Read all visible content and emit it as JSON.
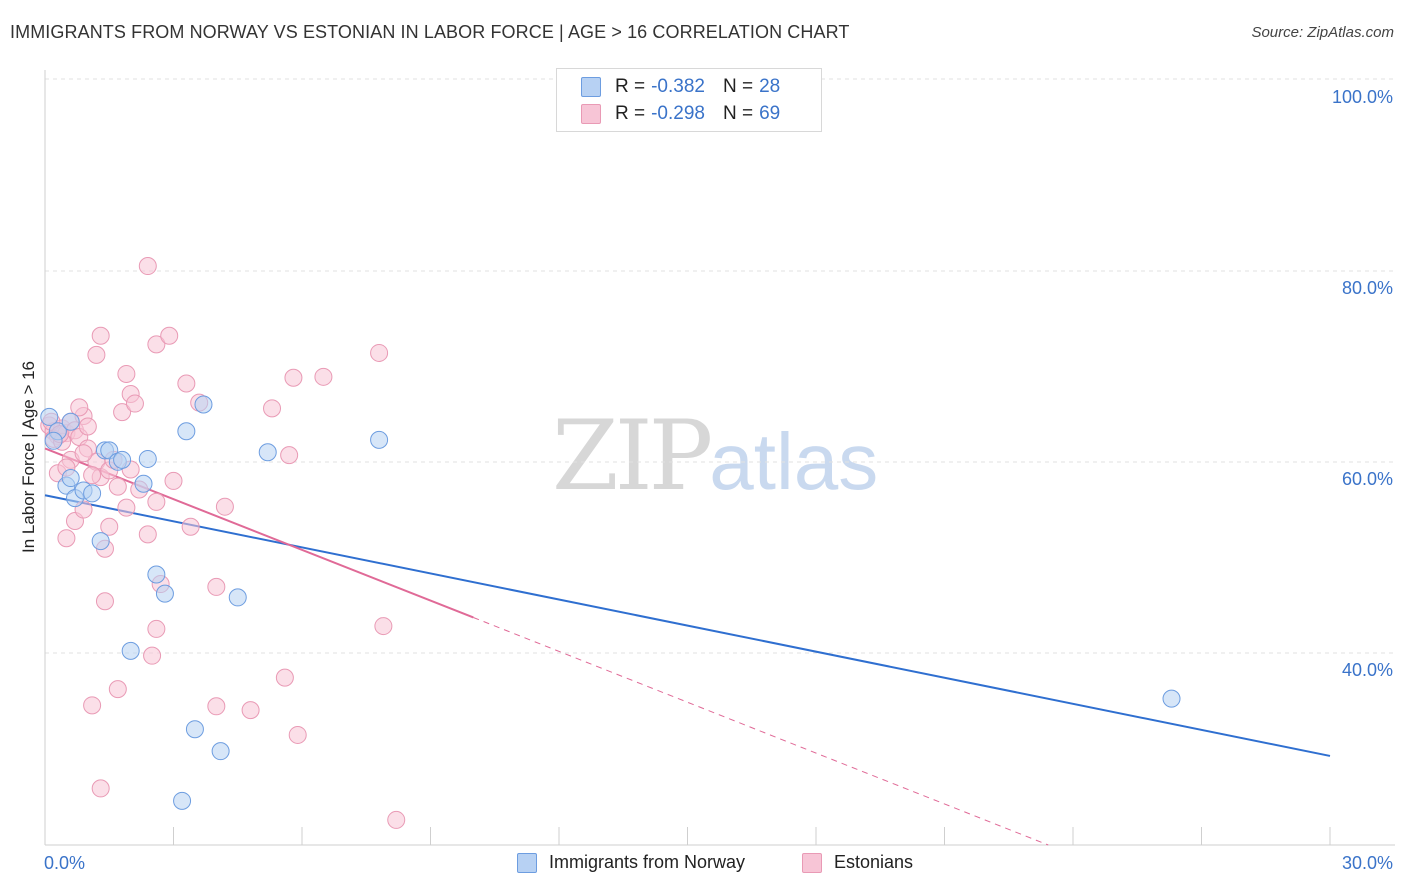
{
  "header": {
    "title": "IMMIGRANTS FROM NORWAY VS ESTONIAN IN LABOR FORCE | AGE > 16 CORRELATION CHART",
    "source": "Source: ZipAtlas.com"
  },
  "legend_top": {
    "rows": [
      {
        "r_label": "R =",
        "r_value": "-0.382",
        "n_label": "N =",
        "n_value": "28"
      },
      {
        "r_label": "R =",
        "r_value": "-0.298",
        "n_label": "N =",
        "n_value": "69"
      }
    ]
  },
  "legend_bottom": {
    "items": [
      {
        "label": "Immigrants from Norway"
      },
      {
        "label": "Estonians"
      }
    ]
  },
  "watermark": {
    "zip": "ZIP",
    "atlas": "atlas"
  },
  "colors": {
    "blue_fill": "#b7d1f3",
    "blue_stroke": "#6d9de0",
    "blue_line": "#2f6fd0",
    "pink_fill": "#f7c5d6",
    "pink_stroke": "#e99ab5",
    "pink_line": "#e06a97",
    "tick_text": "#3a73c9",
    "grid": "#e2e2e2"
  },
  "chart_data": {
    "type": "scatter",
    "title": "IMMIGRANTS FROM NORWAY VS ESTONIAN IN LABOR FORCE | AGE > 16 CORRELATION CHART",
    "xlabel": "",
    "ylabel": "In Labor Force | Age > 16",
    "xlim": [
      0,
      30
    ],
    "ylim": [
      20,
      103
    ],
    "y_ticks": [
      {
        "value": 100,
        "label": "100.0%"
      },
      {
        "value": 80,
        "label": "80.0%"
      },
      {
        "value": 60,
        "label": "60.0%"
      },
      {
        "value": 40,
        "label": "40.0%"
      }
    ],
    "x_ticks": [
      {
        "value": 0,
        "label": "0.0%"
      },
      {
        "value": 30,
        "label": "30.0%"
      }
    ],
    "x_minor_ticks": [
      0,
      3,
      6,
      9,
      12,
      15,
      18,
      21,
      24,
      27,
      30
    ],
    "series": [
      {
        "name": "Immigrants from Norway",
        "r": -0.382,
        "n": 28,
        "trend": {
          "x0": 0,
          "y0": 58.3,
          "x1": 30,
          "y1": 31.0
        },
        "points": [
          [
            0.1,
            66.5
          ],
          [
            0.3,
            65.0
          ],
          [
            0.6,
            66.0
          ],
          [
            0.5,
            59.3
          ],
          [
            0.6,
            60.1
          ],
          [
            0.7,
            58.0
          ],
          [
            0.9,
            58.8
          ],
          [
            1.1,
            58.5
          ],
          [
            1.3,
            53.5
          ],
          [
            1.4,
            63.0
          ],
          [
            1.5,
            63.0
          ],
          [
            1.7,
            61.8
          ],
          [
            1.8,
            62.0
          ],
          [
            2.3,
            59.5
          ],
          [
            2.4,
            62.1
          ],
          [
            2.6,
            50.0
          ],
          [
            2.8,
            48.0
          ],
          [
            3.3,
            65.0
          ],
          [
            3.7,
            67.8
          ],
          [
            5.2,
            62.8
          ],
          [
            7.8,
            64.1
          ],
          [
            2.0,
            42.0
          ],
          [
            4.5,
            47.6
          ],
          [
            3.5,
            33.8
          ],
          [
            4.1,
            31.5
          ],
          [
            3.2,
            26.3
          ],
          [
            26.3,
            37.0
          ],
          [
            0.2,
            64.0
          ]
        ]
      },
      {
        "name": "Estonians",
        "r": -0.298,
        "n": 69,
        "trend": {
          "x0": 0,
          "y0": 63.2,
          "x1": 10.0,
          "y1": 45.5
        },
        "trend_dashed": {
          "x0": 10.0,
          "y0": 45.5,
          "x1": 30,
          "y1": 10.0
        },
        "points": [
          [
            0.1,
            65.6
          ],
          [
            0.2,
            65.0
          ],
          [
            0.3,
            64.5
          ],
          [
            0.4,
            65.3
          ],
          [
            0.5,
            64.8
          ],
          [
            0.6,
            66.0
          ],
          [
            0.7,
            65.1
          ],
          [
            0.8,
            64.4
          ],
          [
            0.9,
            66.6
          ],
          [
            1.0,
            65.5
          ],
          [
            0.8,
            67.5
          ],
          [
            1.0,
            63.2
          ],
          [
            1.2,
            61.8
          ],
          [
            1.3,
            60.2
          ],
          [
            0.3,
            60.6
          ],
          [
            0.5,
            53.8
          ],
          [
            0.7,
            55.6
          ],
          [
            0.9,
            56.8
          ],
          [
            1.2,
            73.0
          ],
          [
            1.3,
            75.0
          ],
          [
            1.8,
            67.0
          ],
          [
            1.9,
            71.0
          ],
          [
            2.0,
            68.9
          ],
          [
            2.1,
            67.9
          ],
          [
            1.5,
            60.9
          ],
          [
            1.4,
            52.7
          ],
          [
            1.4,
            47.2
          ],
          [
            1.7,
            38.0
          ],
          [
            1.1,
            36.3
          ],
          [
            1.3,
            27.6
          ],
          [
            2.4,
            82.3
          ],
          [
            2.6,
            74.1
          ],
          [
            2.9,
            75.0
          ],
          [
            3.3,
            70.0
          ],
          [
            3.6,
            68.0
          ],
          [
            3.0,
            59.8
          ],
          [
            2.6,
            57.6
          ],
          [
            2.4,
            54.2
          ],
          [
            2.7,
            49.0
          ],
          [
            3.4,
            55.0
          ],
          [
            2.6,
            44.3
          ],
          [
            2.5,
            41.5
          ],
          [
            4.0,
            48.7
          ],
          [
            4.2,
            57.1
          ],
          [
            4.0,
            36.2
          ],
          [
            4.8,
            35.8
          ],
          [
            5.3,
            67.4
          ],
          [
            5.7,
            62.5
          ],
          [
            5.8,
            70.6
          ],
          [
            6.5,
            70.7
          ],
          [
            5.6,
            39.2
          ],
          [
            5.9,
            33.2
          ],
          [
            7.8,
            73.2
          ],
          [
            7.9,
            44.6
          ],
          [
            8.2,
            24.3
          ],
          [
            1.1,
            60.4
          ],
          [
            0.6,
            62.0
          ],
          [
            0.2,
            64.2
          ],
          [
            1.6,
            62.0
          ],
          [
            2.0,
            61.0
          ],
          [
            1.7,
            59.2
          ],
          [
            2.2,
            58.9
          ],
          [
            1.9,
            57.0
          ],
          [
            0.4,
            63.9
          ],
          [
            0.5,
            61.2
          ],
          [
            0.9,
            62.7
          ],
          [
            1.5,
            55.0
          ],
          [
            0.15,
            66.0
          ],
          [
            0.35,
            64.7
          ]
        ]
      }
    ]
  }
}
